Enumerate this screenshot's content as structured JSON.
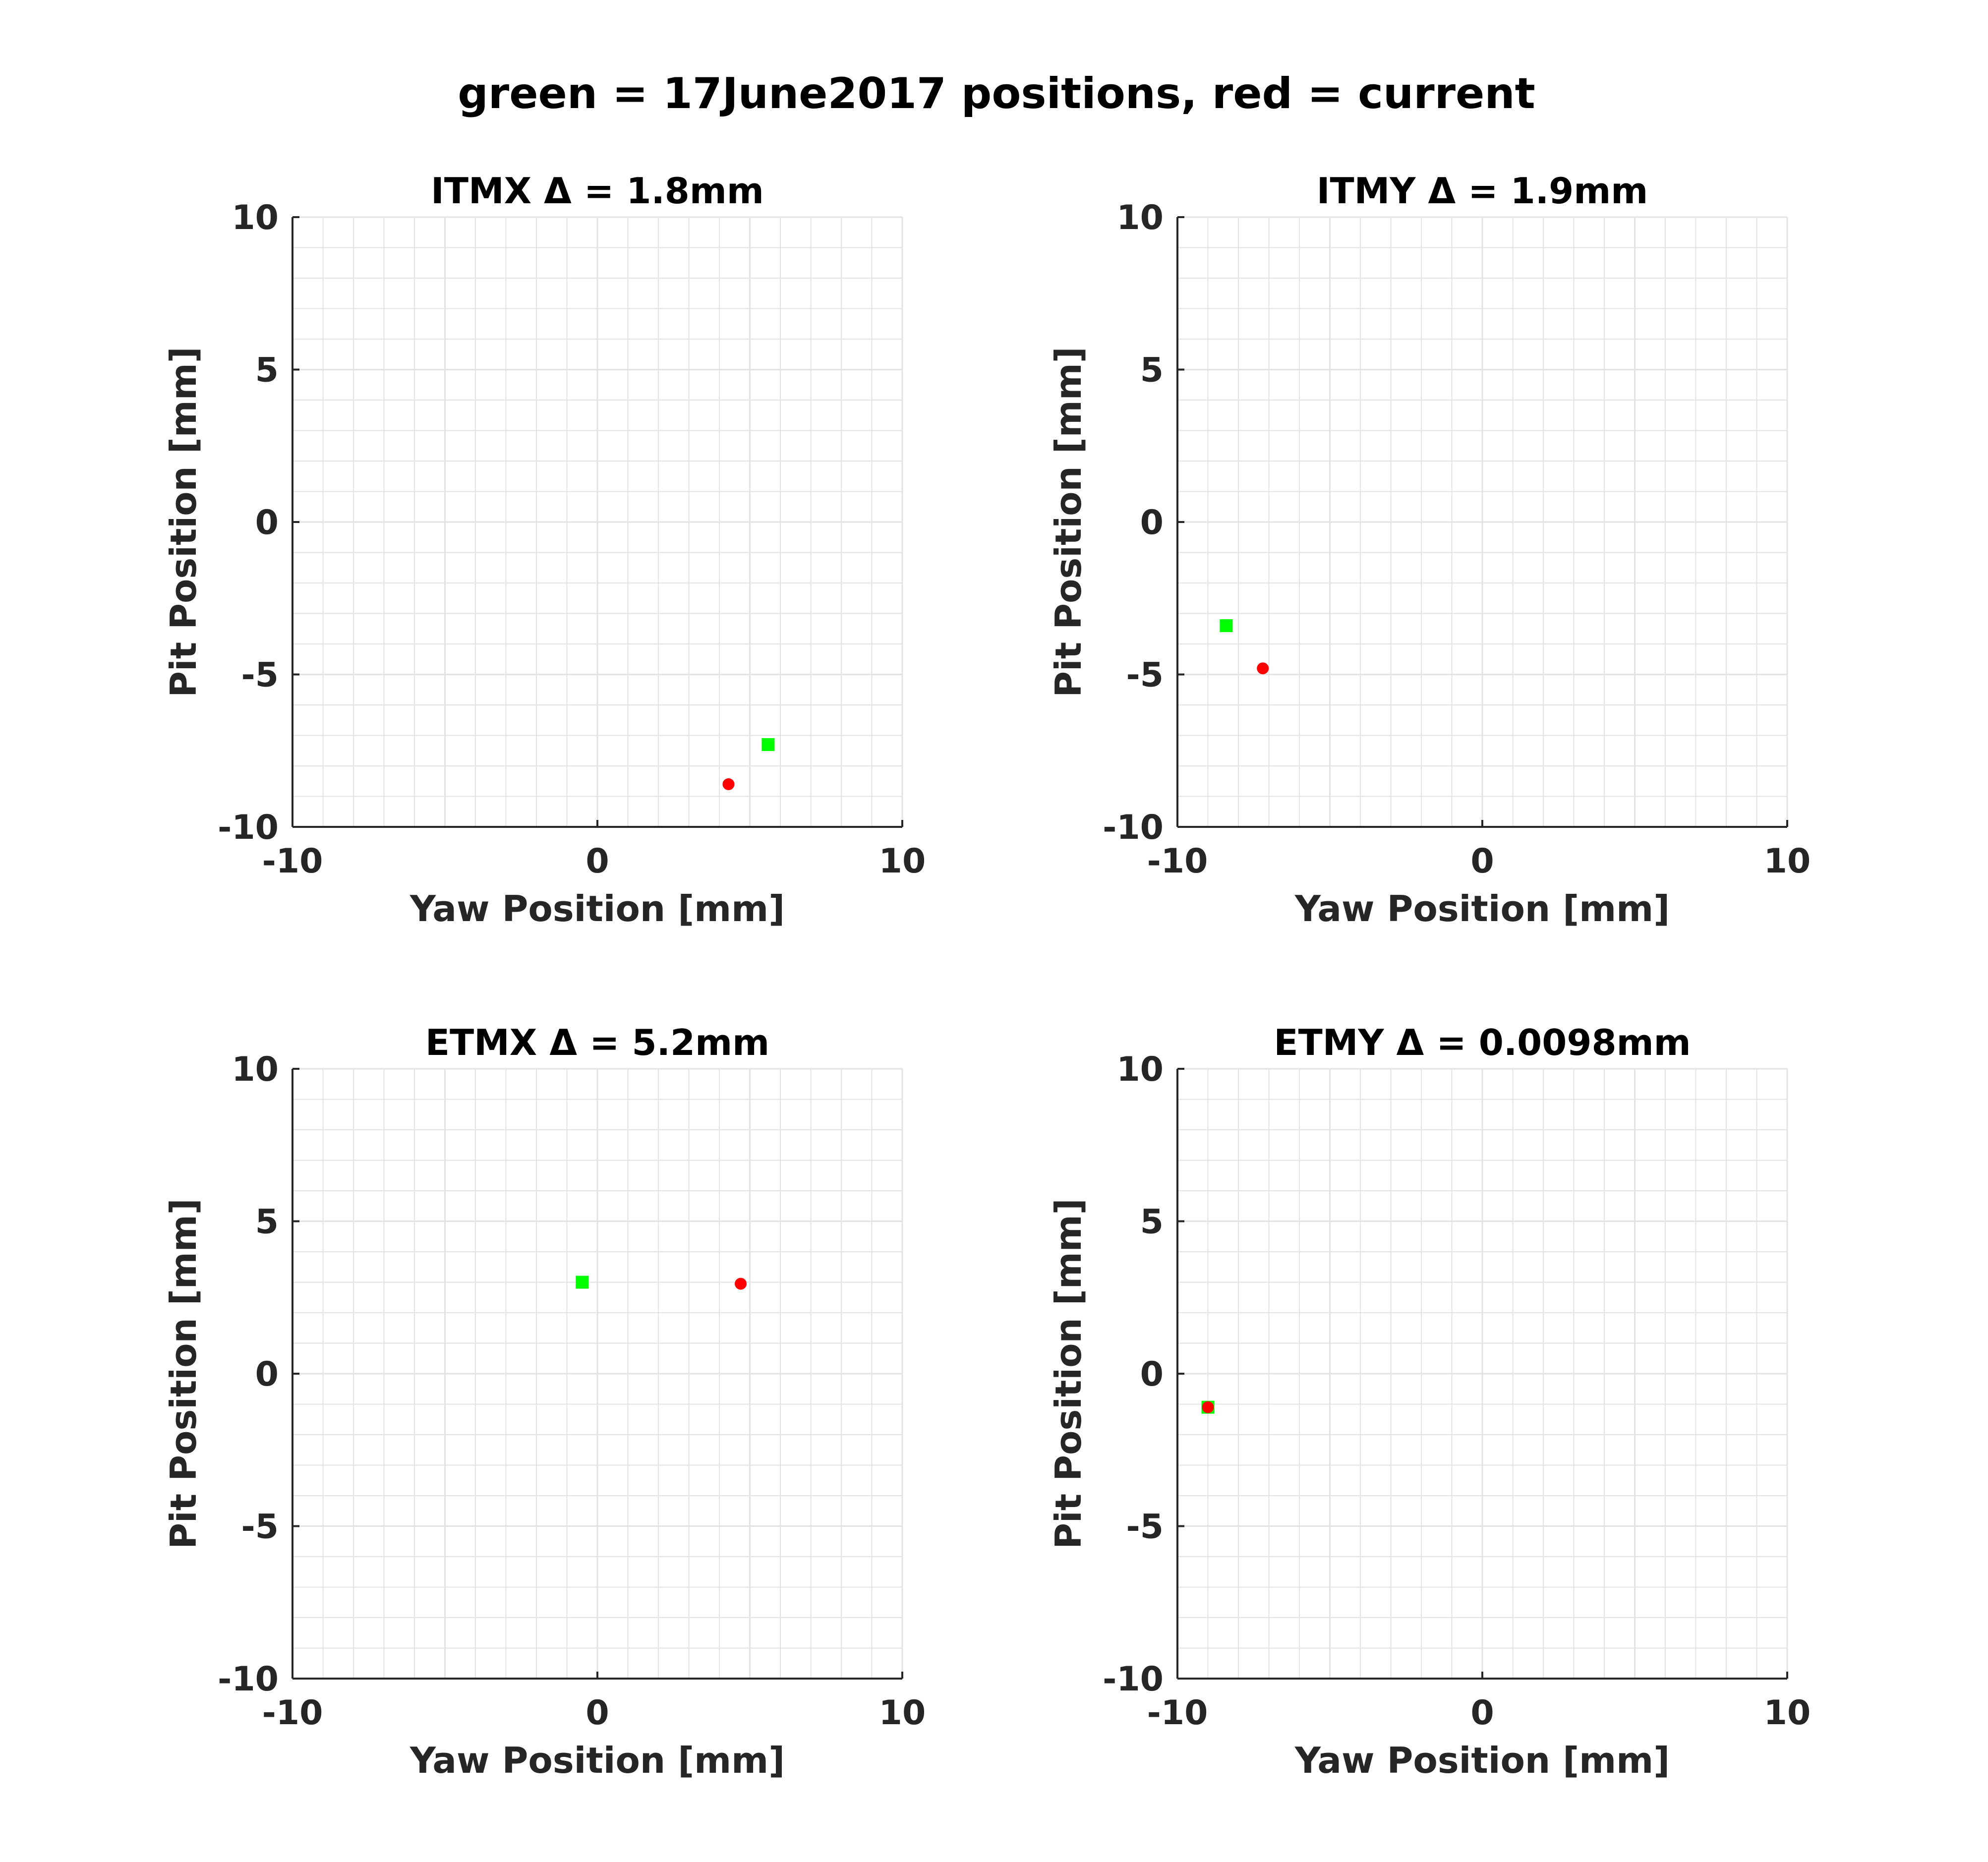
{
  "title": "green = 17June2017 positions, red = current",
  "colors": {
    "reference": "#00ff00",
    "current": "#ff0000",
    "grid": "#e3e3e3",
    "axis": "#262626",
    "text": "#000000"
  },
  "chart_data": [
    {
      "type": "scatter",
      "title": "ITMX Δ = 1.8mm",
      "xlabel": "Yaw Position [mm]",
      "ylabel": "Pit Position [mm]",
      "xlim": [
        -10,
        10
      ],
      "ylim": [
        -10,
        10
      ],
      "xticks": [
        -10,
        0,
        10
      ],
      "yticks": [
        -10,
        -5,
        0,
        5,
        10
      ],
      "grid": true,
      "series": [
        {
          "marker": "square",
          "color": "#00ff00",
          "points": [
            [
              5.6,
              -7.3
            ]
          ]
        },
        {
          "marker": "circle",
          "color": "#ff0000",
          "points": [
            [
              4.3,
              -8.6
            ]
          ]
        }
      ]
    },
    {
      "type": "scatter",
      "title": "ITMY Δ = 1.9mm",
      "xlabel": "Yaw Position [mm]",
      "ylabel": "Pit Position [mm]",
      "xlim": [
        -10,
        10
      ],
      "ylim": [
        -10,
        10
      ],
      "xticks": [
        -10,
        0,
        10
      ],
      "yticks": [
        -10,
        -5,
        0,
        5,
        10
      ],
      "grid": true,
      "series": [
        {
          "marker": "square",
          "color": "#00ff00",
          "points": [
            [
              -8.4,
              -3.4
            ]
          ]
        },
        {
          "marker": "circle",
          "color": "#ff0000",
          "points": [
            [
              -7.2,
              -4.8
            ]
          ]
        }
      ]
    },
    {
      "type": "scatter",
      "title": "ETMX Δ = 5.2mm",
      "xlabel": "Yaw Position [mm]",
      "ylabel": "Pit Position [mm]",
      "xlim": [
        -10,
        10
      ],
      "ylim": [
        -10,
        10
      ],
      "xticks": [
        -10,
        0,
        10
      ],
      "yticks": [
        -10,
        -5,
        0,
        5,
        10
      ],
      "grid": true,
      "series": [
        {
          "marker": "square",
          "color": "#00ff00",
          "points": [
            [
              -0.5,
              3.0
            ]
          ]
        },
        {
          "marker": "circle",
          "color": "#ff0000",
          "points": [
            [
              4.7,
              2.95
            ]
          ]
        }
      ]
    },
    {
      "type": "scatter",
      "title": "ETMY Δ = 0.0098mm",
      "xlabel": "Yaw Position [mm]",
      "ylabel": "Pit Position [mm]",
      "xlim": [
        -10,
        10
      ],
      "ylim": [
        -10,
        10
      ],
      "xticks": [
        -10,
        0,
        10
      ],
      "yticks": [
        -10,
        -5,
        0,
        5,
        10
      ],
      "grid": true,
      "series": [
        {
          "marker": "square",
          "color": "#00ff00",
          "points": [
            [
              -9.0,
              -1.1
            ]
          ]
        },
        {
          "marker": "circle",
          "color": "#ff0000",
          "points": [
            [
              -9.0,
              -1.1
            ]
          ]
        }
      ]
    }
  ]
}
